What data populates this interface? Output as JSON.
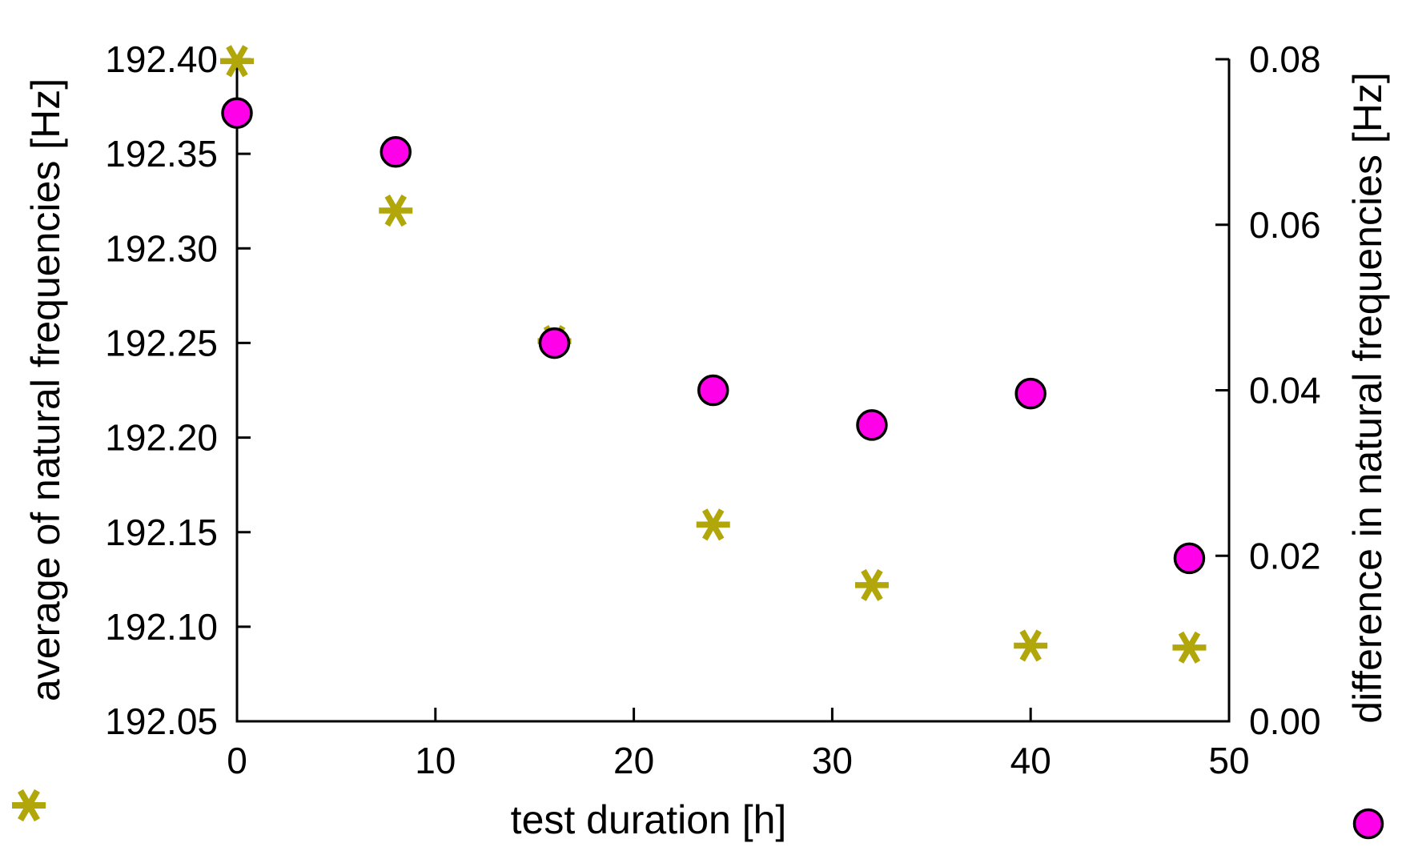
{
  "figure": {
    "background": "#ffffff",
    "text_color": "#000000",
    "x_axis_label": "test duration [h]",
    "left_axis_label": "average of natural frequencies [Hz]",
    "right_axis_label": "difference in natural frequencies [Hz]"
  },
  "legend": {
    "average_marker": "asterisk-icon",
    "difference_marker": "circle-icon"
  },
  "chart_data": {
    "type": "scatter",
    "title": "",
    "xlabel": "test duration [h]",
    "x": [
      0,
      8,
      16,
      24,
      32,
      40,
      48
    ],
    "xlim": [
      0,
      50
    ],
    "x_ticks": [
      0,
      10,
      20,
      30,
      40,
      50
    ],
    "x_tick_labels": [
      "0",
      "10",
      "20",
      "30",
      "40",
      "50"
    ],
    "grid": false,
    "legend_position": "outside-bottom-corners",
    "left_axis": {
      "label": "average of natural frequencies [Hz]",
      "min": 192.05,
      "max": 192.4,
      "ticks": [
        192.05,
        192.1,
        192.15,
        192.2,
        192.25,
        192.3,
        192.35,
        192.4
      ],
      "tick_labels": [
        "192.05",
        "192.10",
        "192.15",
        "192.20",
        "192.25",
        "192.30",
        "192.35",
        "192.40"
      ]
    },
    "right_axis": {
      "label": "difference in natural frequencies [Hz]",
      "min": 0.0,
      "max": 0.08,
      "ticks": [
        0.0,
        0.02,
        0.04,
        0.06,
        0.08
      ],
      "tick_labels": [
        "0.00",
        "0.02",
        "0.04",
        "0.06",
        "0.08"
      ]
    },
    "series": [
      {
        "name": "average of natural frequencies [Hz]",
        "axis": "left",
        "marker": "asterisk",
        "color": "#b1a70b",
        "values": [
          192.399,
          192.32,
          192.251,
          192.154,
          192.122,
          192.09,
          192.089
        ]
      },
      {
        "name": "difference in natural frequencies [Hz]",
        "axis": "right",
        "marker": "circle",
        "color": "#ff00e8",
        "marker_edge_color": "#000000",
        "values": [
          0.0735,
          0.0688,
          0.0457,
          0.04,
          0.0358,
          0.0396,
          0.0197
        ]
      }
    ]
  }
}
